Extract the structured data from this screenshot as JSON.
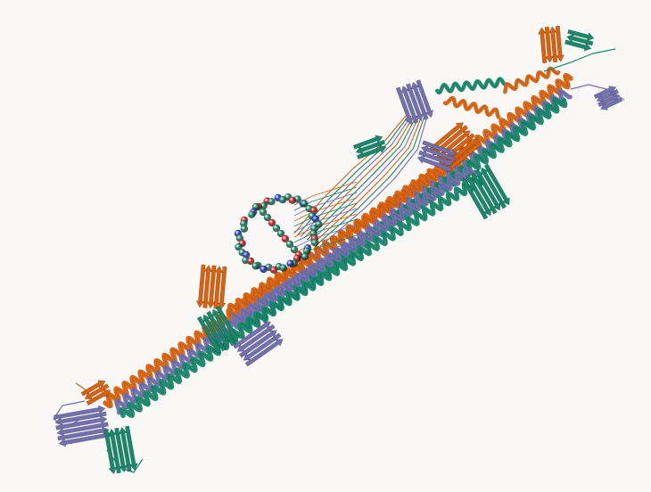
{
  "scene": {
    "background": "#fbf9f8",
    "chain_colors": {
      "chain_a": "#d9620f",
      "chain_b": "#18876a",
      "chain_c": "#7370ad"
    },
    "ligand_colors": {
      "carbon": "#1e8f6e",
      "oxygen": "#e0202a",
      "nitrogen": "#2a3fd8"
    },
    "representation": "cartoon",
    "ligand_representation": "spheres"
  }
}
